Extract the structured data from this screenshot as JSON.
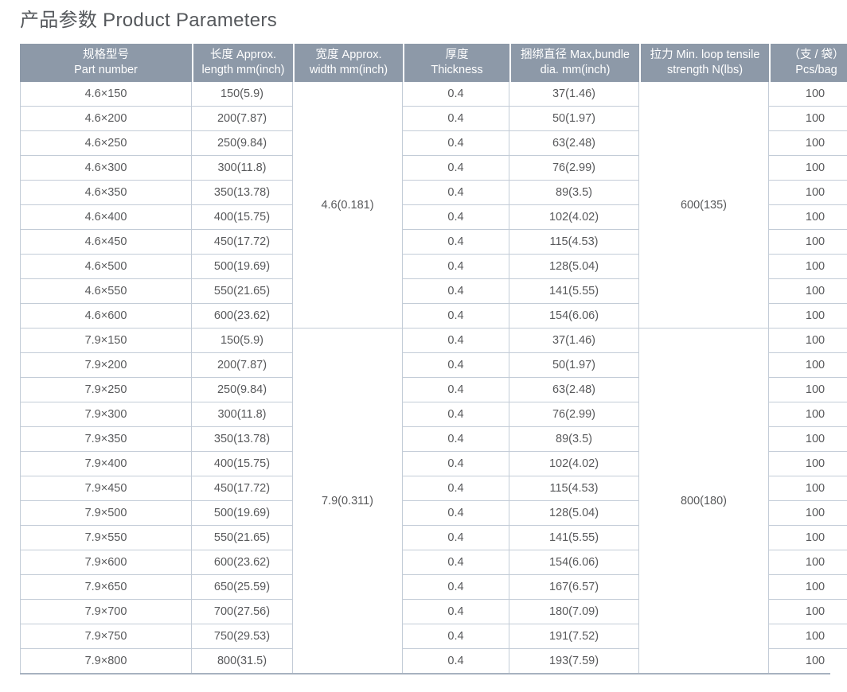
{
  "page_title": "产品参数 Product Parameters",
  "colors": {
    "header_bg": "#8D99A8",
    "header_text": "#FFFFFF",
    "body_text": "#58595B",
    "grid_line": "#C3CCD7",
    "bottom_border": "#A7B2C0"
  },
  "table": {
    "columns": [
      {
        "field": "part",
        "zh": "规格型号",
        "en": "Part number",
        "merged": false
      },
      {
        "field": "length",
        "zh": "长度 Approx.",
        "en": "length mm(inch)",
        "merged": false
      },
      {
        "field": "width",
        "zh": "宽度 Approx.",
        "en": "width mm(inch)",
        "merged": true
      },
      {
        "field": "thickness",
        "zh": "厚度",
        "en": "Thickness",
        "merged": false
      },
      {
        "field": "bundle",
        "zh": "捆绑直径 Max,bundle",
        "en": "dia. mm(inch)",
        "merged": false
      },
      {
        "field": "strength",
        "zh": "拉力 Min. loop tensile",
        "en": "strength N(lbs)",
        "merged": true
      },
      {
        "field": "pcs",
        "zh": "（支 / 袋）",
        "en": "Pcs/bag",
        "merged": false
      }
    ],
    "sections": [
      {
        "width": "4.6(0.181)",
        "strength": "600(135)",
        "rows": [
          {
            "part": "4.6×150",
            "length": "150(5.9)",
            "thickness": "0.4",
            "bundle": "37(1.46)",
            "pcs": "100"
          },
          {
            "part": "4.6×200",
            "length": "200(7.87)",
            "thickness": "0.4",
            "bundle": "50(1.97)",
            "pcs": "100"
          },
          {
            "part": "4.6×250",
            "length": "250(9.84)",
            "thickness": "0.4",
            "bundle": "63(2.48)",
            "pcs": "100"
          },
          {
            "part": "4.6×300",
            "length": "300(11.8)",
            "thickness": "0.4",
            "bundle": "76(2.99)",
            "pcs": "100"
          },
          {
            "part": "4.6×350",
            "length": "350(13.78)",
            "thickness": "0.4",
            "bundle": "89(3.5)",
            "pcs": "100"
          },
          {
            "part": "4.6×400",
            "length": "400(15.75)",
            "thickness": "0.4",
            "bundle": "102(4.02)",
            "pcs": "100"
          },
          {
            "part": "4.6×450",
            "length": "450(17.72)",
            "thickness": "0.4",
            "bundle": "115(4.53)",
            "pcs": "100"
          },
          {
            "part": "4.6×500",
            "length": "500(19.69)",
            "thickness": "0.4",
            "bundle": "128(5.04)",
            "pcs": "100"
          },
          {
            "part": "4.6×550",
            "length": "550(21.65)",
            "thickness": "0.4",
            "bundle": "141(5.55)",
            "pcs": "100"
          },
          {
            "part": "4.6×600",
            "length": "600(23.62)",
            "thickness": "0.4",
            "bundle": "154(6.06)",
            "pcs": "100"
          }
        ]
      },
      {
        "width": "7.9(0.311)",
        "strength": "800(180)",
        "rows": [
          {
            "part": "7.9×150",
            "length": "150(5.9)",
            "thickness": "0.4",
            "bundle": "37(1.46)",
            "pcs": "100"
          },
          {
            "part": "7.9×200",
            "length": "200(7.87)",
            "thickness": "0.4",
            "bundle": "50(1.97)",
            "pcs": "100"
          },
          {
            "part": "7.9×250",
            "length": "250(9.84)",
            "thickness": "0.4",
            "bundle": "63(2.48)",
            "pcs": "100"
          },
          {
            "part": "7.9×300",
            "length": "300(11.8)",
            "thickness": "0.4",
            "bundle": "76(2.99)",
            "pcs": "100"
          },
          {
            "part": "7.9×350",
            "length": "350(13.78)",
            "thickness": "0.4",
            "bundle": "89(3.5)",
            "pcs": "100"
          },
          {
            "part": "7.9×400",
            "length": "400(15.75)",
            "thickness": "0.4",
            "bundle": "102(4.02)",
            "pcs": "100"
          },
          {
            "part": "7.9×450",
            "length": "450(17.72)",
            "thickness": "0.4",
            "bundle": "115(4.53)",
            "pcs": "100"
          },
          {
            "part": "7.9×500",
            "length": "500(19.69)",
            "thickness": "0.4",
            "bundle": "128(5.04)",
            "pcs": "100"
          },
          {
            "part": "7.9×550",
            "length": "550(21.65)",
            "thickness": "0.4",
            "bundle": "141(5.55)",
            "pcs": "100"
          },
          {
            "part": "7.9×600",
            "length": "600(23.62)",
            "thickness": "0.4",
            "bundle": "154(6.06)",
            "pcs": "100"
          },
          {
            "part": "7.9×650",
            "length": "650(25.59)",
            "thickness": "0.4",
            "bundle": "167(6.57)",
            "pcs": "100"
          },
          {
            "part": "7.9×700",
            "length": "700(27.56)",
            "thickness": "0.4",
            "bundle": "180(7.09)",
            "pcs": "100"
          },
          {
            "part": "7.9×750",
            "length": "750(29.53)",
            "thickness": "0.4",
            "bundle": "191(7.52)",
            "pcs": "100"
          },
          {
            "part": "7.9×800",
            "length": "800(31.5)",
            "thickness": "0.4",
            "bundle": "193(7.59)",
            "pcs": "100"
          }
        ]
      }
    ]
  }
}
